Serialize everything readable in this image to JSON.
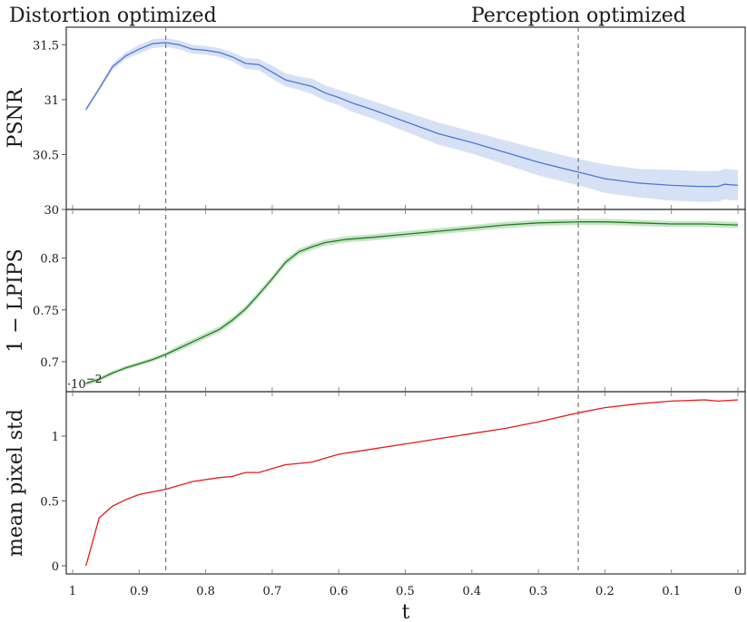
{
  "annotations": {
    "left_title": "Distortion optimized",
    "right_title": "Perception optimized",
    "distortion_t": 0.86,
    "perception_t": 0.24
  },
  "x_axis": {
    "label": "t",
    "ticks": [
      1,
      0.9,
      0.8,
      0.7,
      0.6,
      0.5,
      0.4,
      0.3,
      0.2,
      0.1,
      0
    ],
    "tick_labels": [
      "1",
      "0.9",
      "0.8",
      "0.7",
      "0.6",
      "0.5",
      "0.4",
      "0.3",
      "0.2",
      "0.1",
      "0"
    ],
    "reversed": true
  },
  "chart_data": [
    {
      "type": "line",
      "title": "",
      "xlabel": "t",
      "ylabel": "PSNR",
      "ylim": [
        30,
        31.66
      ],
      "yticks": [
        30,
        30.5,
        31,
        31.5
      ],
      "ytick_labels": [
        "30",
        "30.5",
        "31",
        "31.5"
      ],
      "color": "#4a78d4",
      "band_color": "#d7e1f5",
      "x": [
        0.98,
        0.96,
        0.94,
        0.92,
        0.9,
        0.88,
        0.86,
        0.84,
        0.82,
        0.8,
        0.78,
        0.76,
        0.74,
        0.72,
        0.7,
        0.68,
        0.66,
        0.64,
        0.62,
        0.6,
        0.58,
        0.55,
        0.5,
        0.45,
        0.4,
        0.35,
        0.3,
        0.26,
        0.24,
        0.2,
        0.15,
        0.1,
        0.06,
        0.03,
        0.02,
        0.0
      ],
      "series": [
        {
          "name": "PSNR",
          "values": [
            30.91,
            31.1,
            31.3,
            31.4,
            31.46,
            31.51,
            31.52,
            31.5,
            31.46,
            31.45,
            31.43,
            31.39,
            31.33,
            31.32,
            31.25,
            31.18,
            31.15,
            31.12,
            31.06,
            31.02,
            30.97,
            30.91,
            30.8,
            30.69,
            30.61,
            30.52,
            30.43,
            30.37,
            30.34,
            30.28,
            30.24,
            30.22,
            30.21,
            30.21,
            30.23,
            30.22
          ],
          "band": [
            0.02,
            0.02,
            0.03,
            0.03,
            0.04,
            0.04,
            0.04,
            0.04,
            0.04,
            0.04,
            0.04,
            0.04,
            0.05,
            0.05,
            0.06,
            0.06,
            0.06,
            0.07,
            0.07,
            0.07,
            0.08,
            0.08,
            0.09,
            0.1,
            0.1,
            0.11,
            0.12,
            0.12,
            0.12,
            0.13,
            0.13,
            0.14,
            0.14,
            0.14,
            0.14,
            0.14
          ]
        }
      ]
    },
    {
      "type": "line",
      "title": "",
      "xlabel": "t",
      "ylabel": "1 − LPIPS",
      "ylim": [
        0.671,
        0.847
      ],
      "yticks": [
        0.7,
        0.75,
        0.8
      ],
      "ytick_labels": [
        "0.7",
        "0.75",
        "0.8"
      ],
      "offset_text": "·10",
      "offset_exp": "−2",
      "color": "#1e7d1e",
      "band_color": "#c6e5c6",
      "x": [
        0.98,
        0.96,
        0.94,
        0.92,
        0.9,
        0.88,
        0.86,
        0.84,
        0.82,
        0.8,
        0.78,
        0.76,
        0.74,
        0.72,
        0.7,
        0.68,
        0.66,
        0.64,
        0.62,
        0.59,
        0.55,
        0.5,
        0.45,
        0.4,
        0.35,
        0.3,
        0.24,
        0.2,
        0.15,
        0.1,
        0.05,
        0.0
      ],
      "series": [
        {
          "name": "1 − LPIPS",
          "values": [
            0.679,
            0.683,
            0.689,
            0.694,
            0.698,
            0.702,
            0.707,
            0.713,
            0.719,
            0.725,
            0.731,
            0.74,
            0.751,
            0.765,
            0.78,
            0.796,
            0.806,
            0.811,
            0.815,
            0.818,
            0.82,
            0.823,
            0.826,
            0.829,
            0.832,
            0.834,
            0.835,
            0.835,
            0.834,
            0.833,
            0.833,
            0.832
          ],
          "band": [
            0.002,
            0.002,
            0.002,
            0.002,
            0.002,
            0.002,
            0.002,
            0.003,
            0.003,
            0.003,
            0.003,
            0.003,
            0.003,
            0.003,
            0.003,
            0.003,
            0.003,
            0.003,
            0.003,
            0.003,
            0.003,
            0.003,
            0.003,
            0.003,
            0.003,
            0.003,
            0.003,
            0.003,
            0.003,
            0.003,
            0.003,
            0.003
          ]
        }
      ]
    },
    {
      "type": "line",
      "title": "",
      "xlabel": "t",
      "ylabel": "mean pixel std",
      "ylim": [
        -0.063,
        1.343
      ],
      "yticks": [
        0,
        0.5,
        1
      ],
      "ytick_labels": [
        "0",
        "0.5",
        "1"
      ],
      "color": "#e8191b",
      "band_color": "",
      "x": [
        0.98,
        0.96,
        0.94,
        0.92,
        0.9,
        0.86,
        0.82,
        0.78,
        0.76,
        0.74,
        0.72,
        0.7,
        0.68,
        0.66,
        0.64,
        0.62,
        0.6,
        0.55,
        0.5,
        0.45,
        0.4,
        0.35,
        0.3,
        0.24,
        0.2,
        0.15,
        0.1,
        0.05,
        0.03,
        0.0
      ],
      "series": [
        {
          "name": "mean pixel std",
          "values": [
            0.0,
            0.37,
            0.46,
            0.51,
            0.55,
            0.59,
            0.65,
            0.68,
            0.69,
            0.72,
            0.72,
            0.75,
            0.78,
            0.79,
            0.8,
            0.83,
            0.86,
            0.9,
            0.94,
            0.98,
            1.02,
            1.06,
            1.11,
            1.18,
            1.22,
            1.25,
            1.27,
            1.28,
            1.27,
            1.28
          ]
        }
      ]
    }
  ]
}
